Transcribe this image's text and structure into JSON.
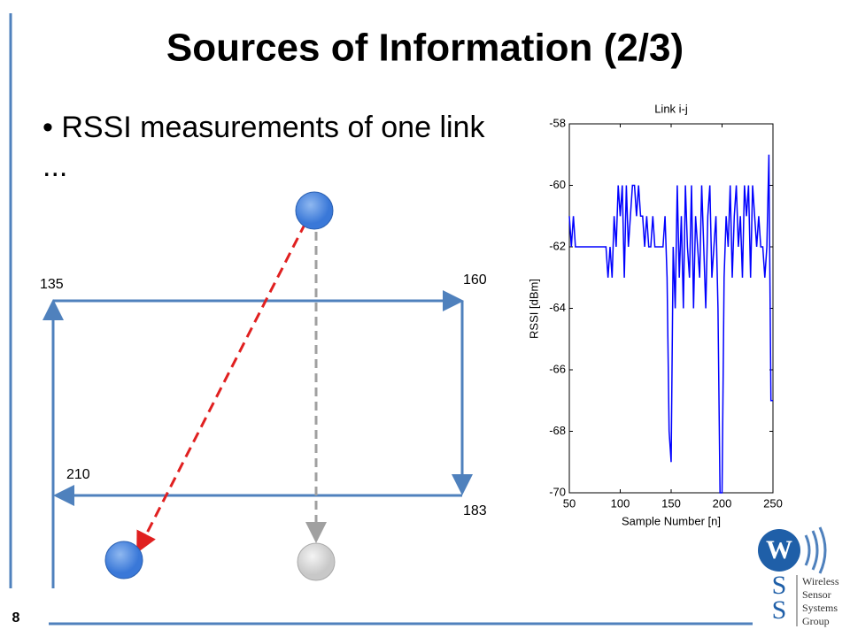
{
  "slide": {
    "title": "Sources of Information (2/3)",
    "bullet": "RSSI measurements of one link ...",
    "page_number": 8
  },
  "diagram": {
    "labels": [
      135,
      160,
      210,
      183
    ]
  },
  "logo": {
    "mark": "W",
    "letters": [
      "S",
      "S"
    ],
    "lines": [
      "Wireless",
      "Sensor",
      "Systems",
      "Group"
    ]
  },
  "chart_data": {
    "type": "line",
    "title": "Link i-j",
    "x_label": "Sample Number [n]",
    "y_label": "RSSI [dBm]",
    "xlim": [
      50,
      250
    ],
    "ylim": [
      -70,
      -58
    ],
    "xticks": [
      50,
      100,
      150,
      200,
      250
    ],
    "yticks": [
      -58,
      -60,
      -62,
      -64,
      -66,
      -68,
      -70
    ],
    "x": [
      50,
      52,
      54,
      56,
      58,
      60,
      62,
      64,
      66,
      68,
      70,
      72,
      74,
      76,
      78,
      80,
      82,
      84,
      86,
      88,
      90,
      92,
      94,
      96,
      98,
      100,
      102,
      104,
      106,
      108,
      110,
      112,
      114,
      116,
      118,
      120,
      122,
      124,
      126,
      128,
      130,
      132,
      134,
      136,
      138,
      140,
      142,
      144,
      146,
      148,
      150,
      152,
      154,
      156,
      158,
      160,
      162,
      164,
      166,
      168,
      170,
      172,
      174,
      176,
      178,
      180,
      182,
      184,
      186,
      188,
      190,
      192,
      194,
      196,
      198,
      200,
      202,
      204,
      206,
      208,
      210,
      212,
      214,
      216,
      218,
      220,
      222,
      224,
      226,
      228,
      230,
      232,
      234,
      236,
      238,
      240,
      242,
      244,
      246,
      248,
      250
    ],
    "series": [
      {
        "name": "Link i-j",
        "color": "#0000ff",
        "values": [
          -61,
          -62,
          -61,
          -62,
          -62,
          -62,
          -62,
          -62,
          -62,
          -62,
          -62,
          -62,
          -62,
          -62,
          -62,
          -62,
          -62,
          -62,
          -62,
          -63,
          -62,
          -63,
          -61,
          -62,
          -60,
          -61,
          -60,
          -63,
          -60,
          -62,
          -61,
          -60,
          -60,
          -61,
          -60,
          -61,
          -61,
          -62,
          -61,
          -62,
          -62,
          -61,
          -62,
          -62,
          -62,
          -62,
          -62,
          -61,
          -63,
          -68,
          -69,
          -62,
          -64,
          -60,
          -63,
          -61,
          -64,
          -60,
          -62,
          -63,
          -60,
          -64,
          -61,
          -62,
          -63,
          -60,
          -62,
          -64,
          -61,
          -60,
          -63,
          -62,
          -61,
          -64,
          -70,
          -70,
          -63,
          -61,
          -62,
          -60,
          -63,
          -61,
          -60,
          -62,
          -61,
          -63,
          -60,
          -61,
          -60,
          -63,
          -60,
          -61,
          -62,
          -61,
          -62,
          -62,
          -63,
          -62,
          -59,
          -67,
          -67
        ]
      }
    ]
  }
}
